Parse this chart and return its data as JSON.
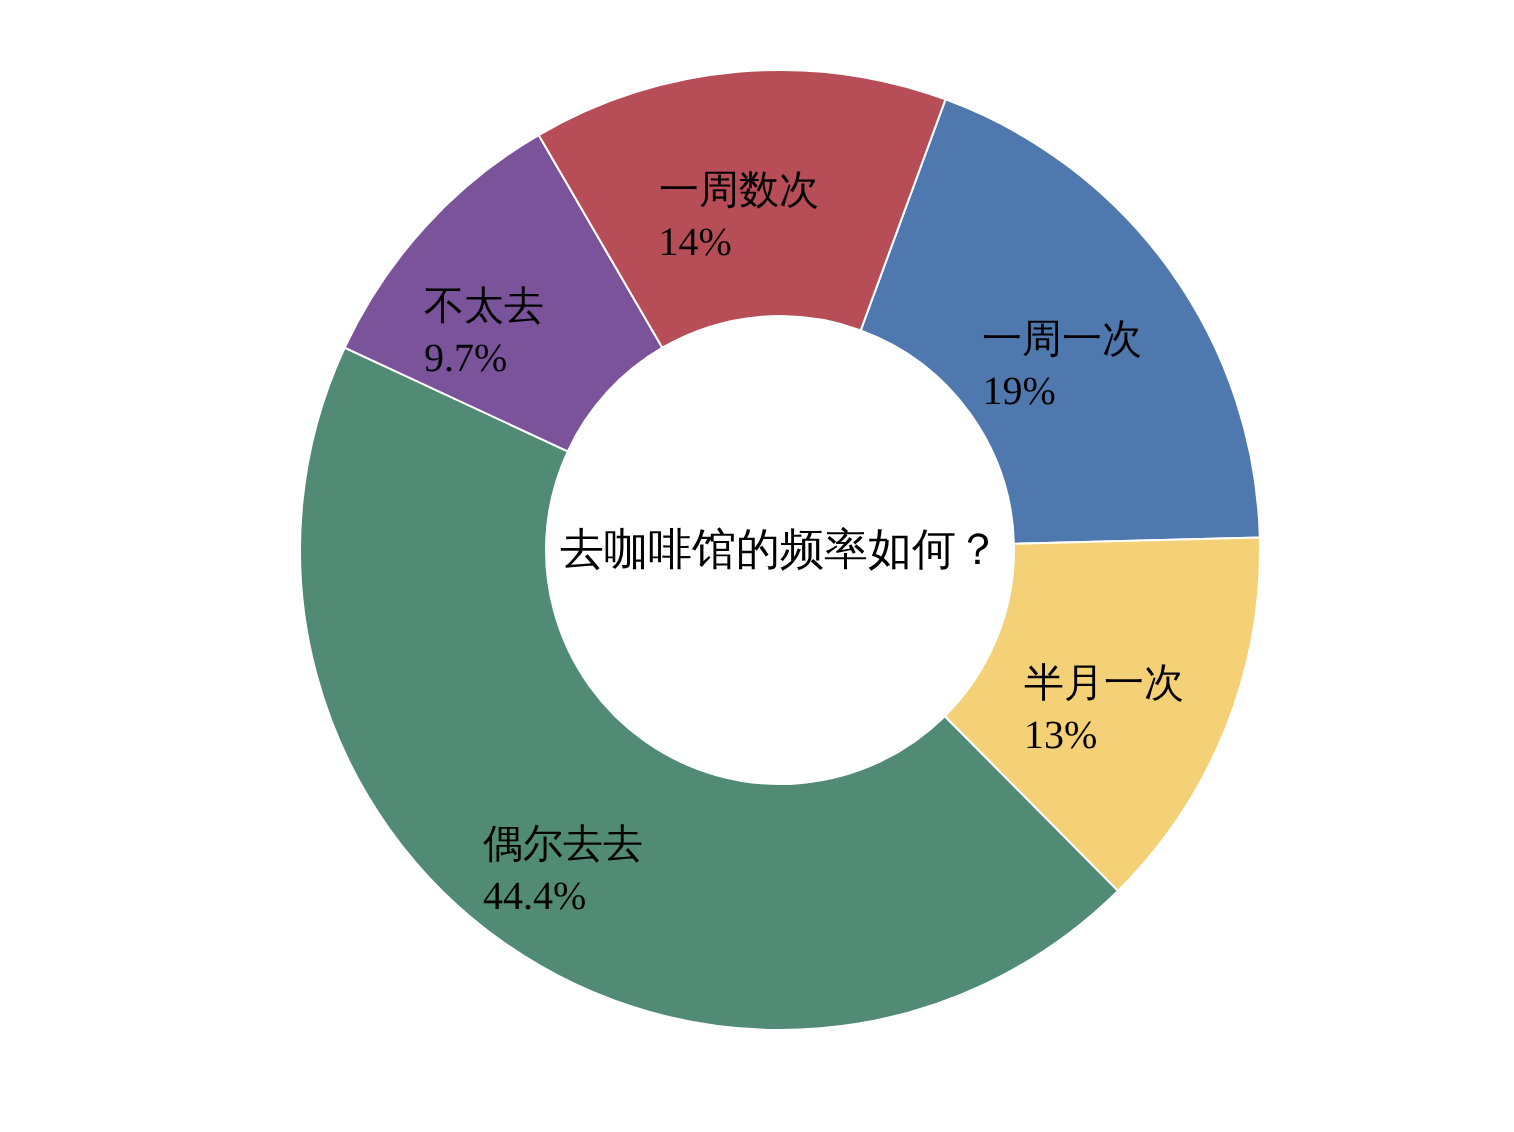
{
  "chart_data": {
    "type": "donut",
    "title": "去咖啡馆的频率如何？",
    "categories": [
      "一周一次",
      "半月一次",
      "偶尔去去",
      "不太去",
      "一周数次"
    ],
    "values": [
      19,
      13,
      44.4,
      9.7,
      14
    ],
    "value_labels": [
      "19%",
      "13%",
      "44.4%",
      "9.7%",
      "14%"
    ],
    "colors": [
      "#4f79ae",
      "#f4d077",
      "#518b76",
      "#7a539b",
      "#b74e57"
    ]
  }
}
